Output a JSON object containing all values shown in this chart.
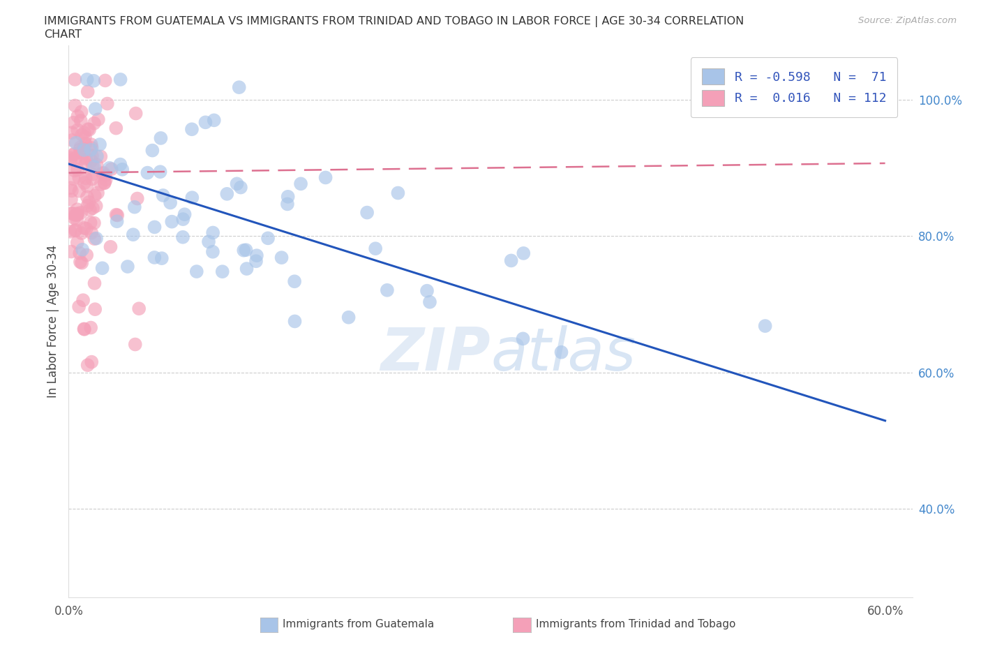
{
  "title_line1": "IMMIGRANTS FROM GUATEMALA VS IMMIGRANTS FROM TRINIDAD AND TOBAGO IN LABOR FORCE | AGE 30-34 CORRELATION",
  "title_line2": "CHART",
  "source_text": "Source: ZipAtlas.com",
  "ylabel": "In Labor Force | Age 30-34",
  "watermark": "ZIPatlas",
  "color_blue": "#a8c4e8",
  "color_pink": "#f4a0b8",
  "line_blue": "#2255bb",
  "line_pink": "#dd7090",
  "xlim": [
    0.0,
    0.62
  ],
  "ylim": [
    0.27,
    1.08
  ],
  "xticks": [
    0.0,
    0.1,
    0.2,
    0.3,
    0.4,
    0.5,
    0.6
  ],
  "xticklabels": [
    "0.0%",
    "",
    "",
    "",
    "",
    "",
    "60.0%"
  ],
  "yticks_right": [
    0.4,
    0.6,
    0.8,
    1.0
  ],
  "yticklabels_right": [
    "40.0%",
    "60.0%",
    "80.0%",
    "100.0%"
  ],
  "blue_line_x0": 0.0,
  "blue_line_y0": 0.906,
  "blue_line_x1": 0.6,
  "blue_line_y1": 0.529,
  "pink_line_x0": 0.0,
  "pink_line_y0": 0.893,
  "pink_line_x1": 0.6,
  "pink_line_y1": 0.907,
  "legend_label1": "R = -0.598   N =  71",
  "legend_label2": "R =  0.016   N = 112",
  "bottom_label1": "Immigrants from Guatemala",
  "bottom_label2": "Immigrants from Trinidad and Tobago"
}
